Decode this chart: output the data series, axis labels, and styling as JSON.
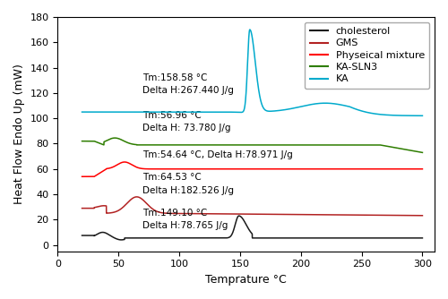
{
  "xlabel": "Temprature °C",
  "ylabel": "Heat Flow Endo Up (mW)",
  "xlim": [
    15,
    310
  ],
  "ylim": [
    -5,
    180
  ],
  "xticks": [
    0,
    50,
    100,
    150,
    200,
    250,
    300
  ],
  "yticks": [
    0,
    20,
    40,
    60,
    80,
    100,
    120,
    140,
    160,
    180
  ],
  "colors": {
    "cholesterol": "#1a1a1a",
    "GMS": "#b22222",
    "physical_mixture": "#ff0000",
    "KA_SLN3": "#2e7d00",
    "KA": "#00aacc"
  },
  "legend": [
    {
      "label": "cholesterol",
      "color": "#1a1a1a"
    },
    {
      "label": "GMS",
      "color": "#b22222"
    },
    {
      "label": "Physeical mixture",
      "color": "#ff0000"
    },
    {
      "label": "KA-SLN3",
      "color": "#2e7d00"
    },
    {
      "label": "KA",
      "color": "#00aacc"
    }
  ],
  "annot_fontsize": 7.5,
  "axis_fontsize": 9,
  "tick_fontsize": 8,
  "legend_fontsize": 8
}
